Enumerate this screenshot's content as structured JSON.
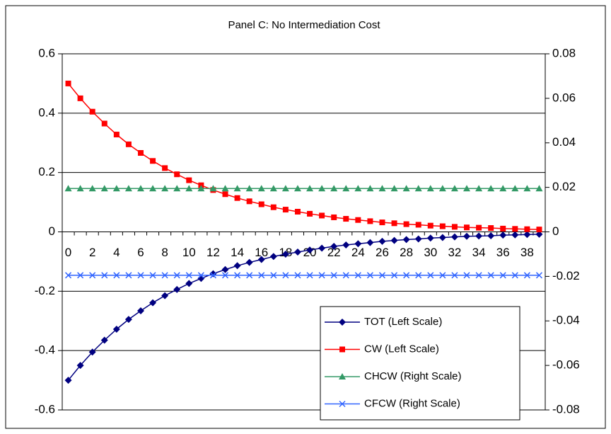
{
  "chart_data": {
    "type": "line",
    "title": "Panel C: No Intermediation Cost",
    "categories": [
      0,
      null,
      2,
      null,
      4,
      null,
      6,
      null,
      8,
      null,
      10,
      null,
      12,
      null,
      14,
      null,
      16,
      null,
      18,
      null,
      20,
      null,
      22,
      null,
      24,
      null,
      26,
      null,
      28,
      null,
      30,
      null,
      32,
      null,
      34,
      null,
      36,
      null,
      38,
      null
    ],
    "series": [
      {
        "name": "TOT (Left Scale)",
        "color": "#000080",
        "marker": "diamond",
        "values": [
          -0.5,
          -0.45,
          -0.405,
          -0.365,
          -0.328,
          -0.295,
          -0.266,
          -0.239,
          -0.215,
          -0.194,
          -0.174,
          -0.157,
          -0.141,
          -0.127,
          -0.114,
          -0.103,
          -0.093,
          -0.083,
          -0.075,
          -0.068,
          -0.061,
          -0.055,
          -0.049,
          -0.044,
          -0.04,
          -0.036,
          -0.032,
          -0.029,
          -0.026,
          -0.024,
          -0.021,
          -0.019,
          -0.017,
          -0.015,
          -0.014,
          -0.013,
          -0.011,
          -0.01,
          -0.009,
          -0.008
        ]
      },
      {
        "name": "CW (Left Scale)",
        "color": "#ff0000",
        "marker": "square",
        "values": [
          0.5,
          0.45,
          0.405,
          0.365,
          0.328,
          0.295,
          0.266,
          0.239,
          0.215,
          0.194,
          0.174,
          0.157,
          0.141,
          0.127,
          0.114,
          0.103,
          0.093,
          0.083,
          0.075,
          0.068,
          0.061,
          0.055,
          0.049,
          0.044,
          0.04,
          0.036,
          0.032,
          0.029,
          0.026,
          0.024,
          0.021,
          0.019,
          0.017,
          0.015,
          0.014,
          0.013,
          0.011,
          0.01,
          0.009,
          0.008
        ]
      },
      {
        "name": "CHCW (Right Scale)",
        "color": "#339966",
        "marker": "triangle",
        "axis": "y2",
        "values": [
          0.0195,
          0.0195,
          0.0195,
          0.0195,
          0.0195,
          0.0195,
          0.0195,
          0.0195,
          0.0195,
          0.0195,
          0.0195,
          0.0195,
          0.0195,
          0.0195,
          0.0195,
          0.0195,
          0.0195,
          0.0195,
          0.0195,
          0.0195,
          0.0195,
          0.0195,
          0.0195,
          0.0195,
          0.0195,
          0.0195,
          0.0195,
          0.0195,
          0.0195,
          0.0195,
          0.0195,
          0.0195,
          0.0195,
          0.0195,
          0.0195,
          0.0195,
          0.0195,
          0.0195,
          0.0195,
          0.0195
        ]
      },
      {
        "name": "CFCW (Right Scale)",
        "color": "#3366ff",
        "marker": "x",
        "axis": "y2",
        "values": [
          -0.0195,
          -0.0195,
          -0.0195,
          -0.0195,
          -0.0195,
          -0.0195,
          -0.0195,
          -0.0195,
          -0.0195,
          -0.0195,
          -0.0195,
          -0.0195,
          -0.0195,
          -0.0195,
          -0.0195,
          -0.0195,
          -0.0195,
          -0.0195,
          -0.0195,
          -0.0195,
          -0.0195,
          -0.0195,
          -0.0195,
          -0.0195,
          -0.0195,
          -0.0195,
          -0.0195,
          -0.0195,
          -0.0195,
          -0.0195,
          -0.0195,
          -0.0195,
          -0.0195,
          -0.0195,
          -0.0195,
          -0.0195,
          -0.0195,
          -0.0195,
          -0.0195,
          -0.0195
        ]
      }
    ],
    "ylim": [
      -0.6,
      0.6
    ],
    "yticks": [
      -0.6,
      -0.4,
      -0.2,
      0,
      0.2,
      0.4,
      0.6
    ],
    "y2lim": [
      -0.08,
      0.08
    ],
    "y2ticks": [
      -0.08,
      -0.06,
      -0.04,
      -0.02,
      0,
      0.02,
      0.04,
      0.06,
      0.08
    ],
    "grid": true,
    "legend": "lower right"
  }
}
